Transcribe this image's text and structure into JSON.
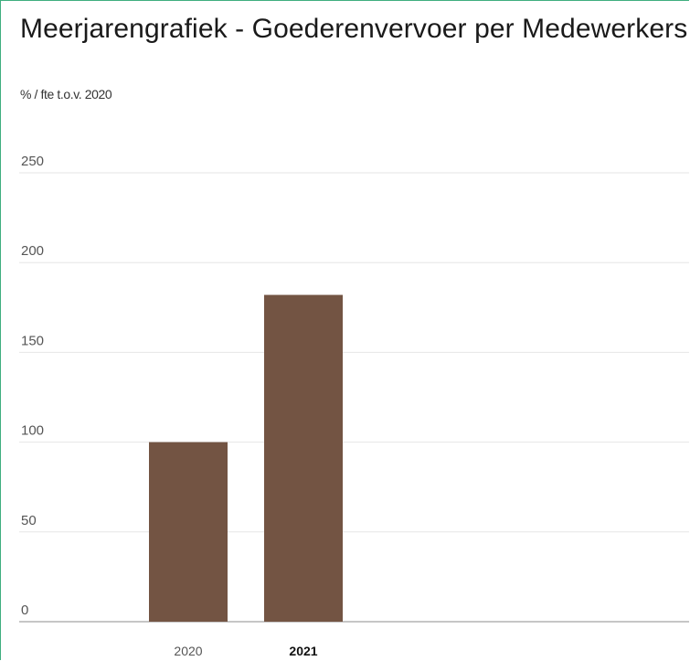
{
  "title": "Meerjarengrafiek - Goederenvervoer per Medewerkers",
  "unit_label": "% / fte t.o.v. 2020",
  "chart_data": {
    "type": "bar",
    "categories": [
      "2020",
      "2021"
    ],
    "values": [
      100,
      182
    ],
    "selected_category": "2021",
    "ylim": [
      0,
      250
    ],
    "yticks": [
      0,
      50,
      100,
      150,
      200,
      250
    ],
    "ylabel": "% / fte t.o.v. 2020",
    "xlabel": "",
    "grid": true,
    "bar_color": "#735443",
    "grid_color": "#e6e6e6",
    "axis_color": "#b3b3b3"
  }
}
